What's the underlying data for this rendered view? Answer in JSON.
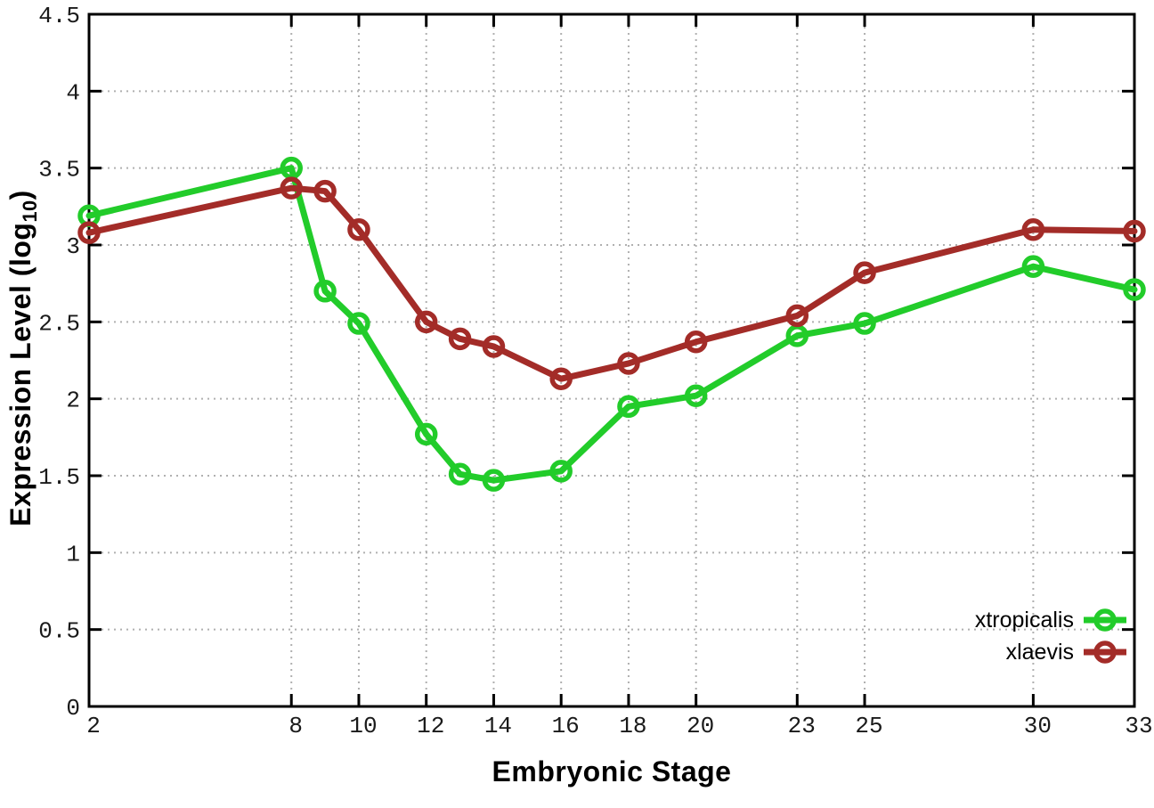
{
  "chart_data": {
    "type": "line",
    "title": "",
    "xlabel": "Embryonic Stage",
    "ylabel": "Expression Level (log10)",
    "ylabel_parts": {
      "pre": "Expression Level (log",
      "sub": "10",
      "post": ")"
    },
    "x": [
      2,
      8,
      9,
      10,
      12,
      13,
      14,
      16,
      18,
      20,
      23,
      25,
      30,
      33
    ],
    "series": [
      {
        "name": "xtropicalis",
        "color": "#22cc2a",
        "values": [
          3.19,
          3.5,
          2.7,
          2.49,
          1.77,
          1.51,
          1.47,
          1.53,
          1.95,
          2.02,
          2.41,
          2.49,
          2.86,
          2.71
        ]
      },
      {
        "name": "xlaevis",
        "color": "#a32c28",
        "values": [
          3.08,
          3.37,
          3.35,
          3.1,
          2.5,
          2.39,
          2.34,
          2.13,
          2.23,
          2.37,
          2.54,
          2.82,
          3.1,
          3.09
        ]
      }
    ],
    "xlim": [
      2,
      33
    ],
    "ylim": [
      0,
      4.5
    ],
    "xticks": [
      2,
      8,
      10,
      12,
      14,
      16,
      18,
      20,
      23,
      25,
      30,
      33
    ],
    "yticks": [
      0,
      0.5,
      1,
      1.5,
      2,
      2.5,
      3,
      3.5,
      4,
      4.5
    ],
    "grid": true,
    "grid_style": "dotted",
    "grid_color": "#b0b0b0",
    "axis_color": "#000000",
    "background": "#ffffff",
    "marker": "open-circle",
    "legend_position": "inside-bottom-right"
  }
}
